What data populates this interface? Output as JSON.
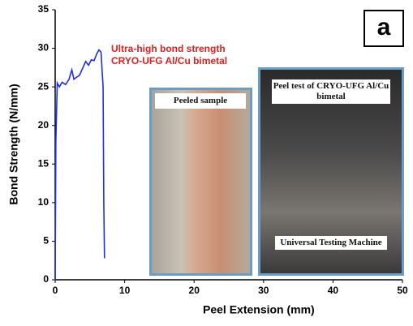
{
  "chart_data": {
    "type": "line",
    "xlabel": "Peel Extension (mm)",
    "ylabel": "Bond Strength (N/mm)",
    "x": [
      0,
      0.1,
      0.3,
      0.6,
      1.0,
      1.5,
      2.0,
      2.4,
      2.7,
      3.0,
      3.5,
      4.0,
      4.4,
      4.8,
      5.2,
      5.6,
      6.0,
      6.3,
      6.6,
      6.9,
      7.0,
      7.1
    ],
    "series": [
      {
        "color": "#1f2cf0",
        "values": [
          0,
          18,
          25.5,
          25,
          25.6,
          25.3,
          26,
          27.2,
          26,
          26.2,
          26.5,
          27.5,
          28.3,
          27.8,
          28.5,
          28.4,
          29.3,
          29.8,
          29.5,
          25,
          10,
          2.8
        ]
      }
    ],
    "xlim": [
      0,
      50
    ],
    "xticks": [
      0,
      10,
      20,
      30,
      40,
      50
    ],
    "ylim": [
      0,
      35
    ],
    "yticks": [
      0,
      5,
      10,
      15,
      20,
      25,
      30,
      35
    ],
    "annotations": [
      "Ultra-high bond strength",
      "CRYO-UFG Al/Cu bimetal"
    ],
    "annotation_color": "#e02020",
    "panel_label": "a",
    "insets": [
      {
        "caption": "Peeled sample"
      },
      {
        "caption_top": "Peel test of CRYO-UFG Al/Cu bimetal",
        "caption_bottom": "Universal Testing Machine"
      }
    ]
  }
}
